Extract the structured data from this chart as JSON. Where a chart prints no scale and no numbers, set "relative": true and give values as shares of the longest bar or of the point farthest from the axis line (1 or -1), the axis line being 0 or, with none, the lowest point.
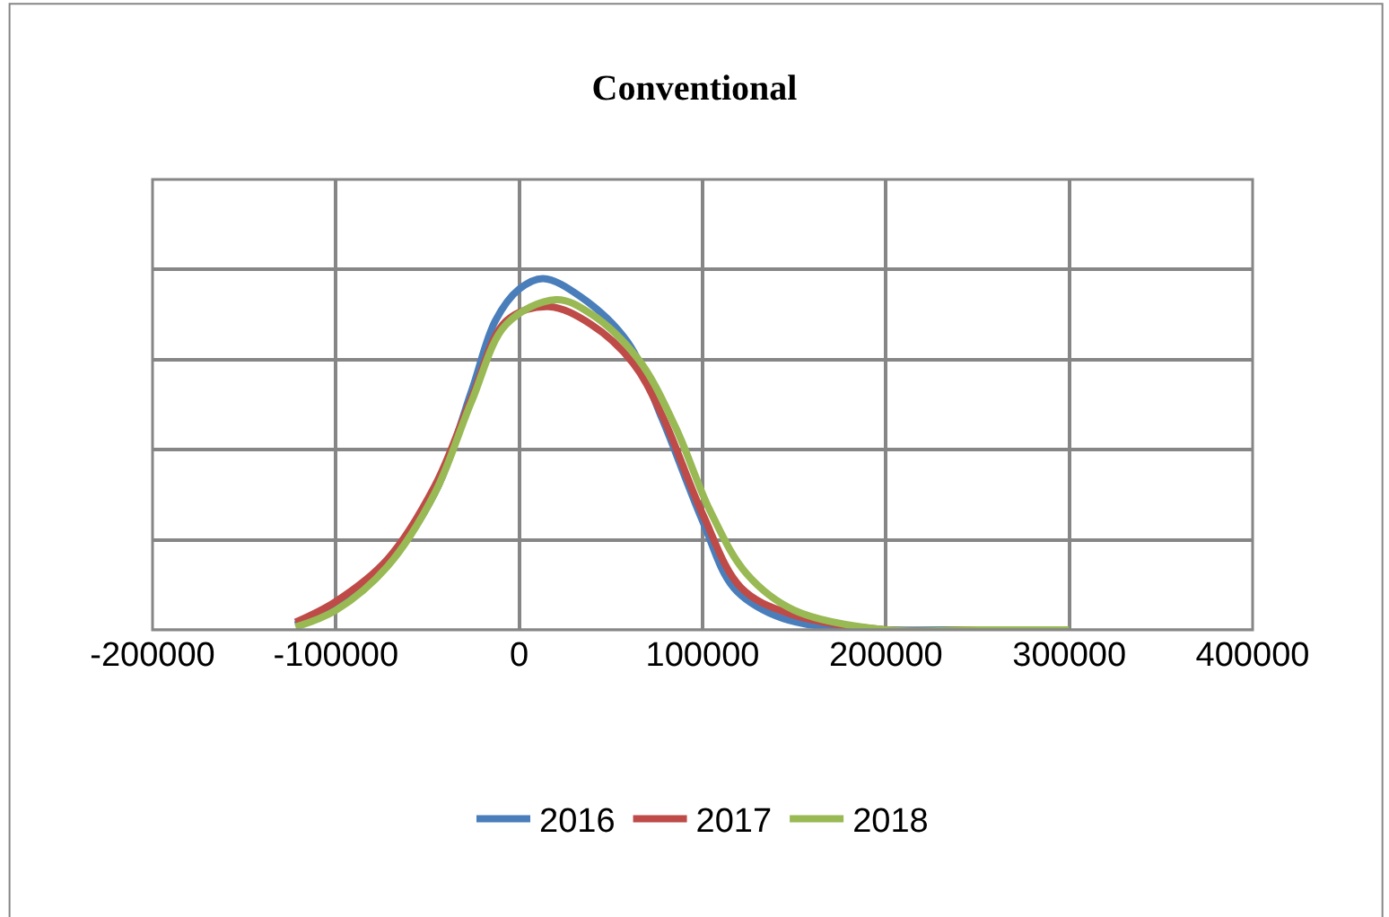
{
  "chart_data": {
    "type": "line",
    "title": "Conventional",
    "relative": true,
    "xlim": [
      -200000,
      400000
    ],
    "xticks": [
      -200000,
      -100000,
      0,
      100000,
      200000,
      300000,
      400000
    ],
    "tick_labels": "x",
    "grid": true,
    "legend": "bottom",
    "marker": "none",
    "line_style": "solid",
    "series": [
      {
        "name": "2016",
        "color": "#4a7ebb",
        "x": [
          -122000,
          -100000,
          -72000,
          -46000,
          -26000,
          -13000,
          0,
          13000,
          33000,
          59000,
          78000,
          100000,
          117000,
          140000,
          172000,
          200000,
          250000,
          300000
        ],
        "values": [
          0.014,
          0.073,
          0.19,
          0.39,
          0.68,
          0.88,
          0.97,
          1.0,
          0.95,
          0.82,
          0.6,
          0.31,
          0.12,
          0.04,
          0.005,
          0,
          0,
          0
        ]
      },
      {
        "name": "2017",
        "color": "#be4b48",
        "x": [
          -122000,
          -100000,
          -72000,
          -46000,
          -26000,
          -7000,
          16000,
          39000,
          62000,
          78000,
          100000,
          121000,
          147000,
          200000,
          250000,
          300000
        ],
        "values": [
          0.022,
          0.081,
          0.2,
          0.41,
          0.66,
          0.88,
          0.92,
          0.87,
          0.76,
          0.61,
          0.33,
          0.12,
          0.047,
          0,
          0,
          0
        ]
      },
      {
        "name": "2018",
        "color": "#98b954",
        "x": [
          -122000,
          -100000,
          -72000,
          -46000,
          -26000,
          -7000,
          20000,
          39000,
          65000,
          85000,
          104000,
          124000,
          150000,
          200000,
          250000,
          300000
        ],
        "values": [
          0.008,
          0.056,
          0.18,
          0.39,
          0.65,
          0.87,
          0.94,
          0.9,
          0.77,
          0.58,
          0.34,
          0.16,
          0.056,
          0,
          0,
          0
        ]
      }
    ]
  }
}
